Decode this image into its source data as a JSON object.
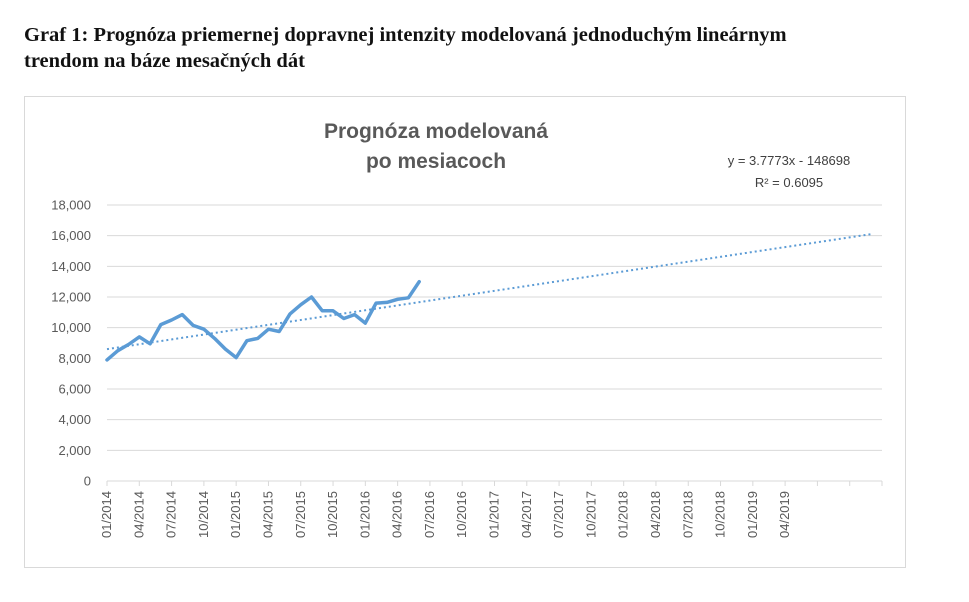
{
  "caption": {
    "line1": "Graf 1: Prognóza priemernej dopravnej intenzity modelovaná jednoduchým lineárnym",
    "line2": "trendom na báze mesačných dát"
  },
  "colors": {
    "series": "#5b9bd5",
    "gridline": "#d9d9d9",
    "text": "#595959"
  },
  "chart_data": {
    "type": "line",
    "title_lines": [
      "Prognóza modelovaná",
      "po mesiacoch"
    ],
    "trendline": {
      "equation": "y = 3.7773x - 148698",
      "r_squared": "R² = 0.6095",
      "style": "dotted",
      "start": "2014-01",
      "end": "2019-12",
      "from_value": 8600,
      "to_value": 16100
    },
    "y_ticks": [
      "0",
      "2,000",
      "4,000",
      "6,000",
      "8,000",
      "10,000",
      "12,000",
      "14,000",
      "16,000",
      "18,000"
    ],
    "x_ticks": [
      "01/2014",
      "04/2014",
      "07/2014",
      "10/2014",
      "01/2015",
      "04/2015",
      "07/2015",
      "10/2015",
      "01/2016",
      "04/2016",
      "07/2016",
      "10/2016",
      "01/2017",
      "04/2017",
      "07/2017",
      "10/2017",
      "01/2018",
      "04/2018",
      "07/2018",
      "10/2018",
      "01/2019",
      "04/2019"
    ],
    "ylim": [
      0,
      18000
    ],
    "grid": true,
    "series": [
      {
        "x": [
          "2014-01",
          "2014-02",
          "2014-03",
          "2014-04",
          "2014-05",
          "2014-06",
          "2014-07",
          "2014-08",
          "2014-09",
          "2014-10",
          "2014-11",
          "2014-12",
          "2015-01",
          "2015-02",
          "2015-03",
          "2015-04",
          "2015-05",
          "2015-06",
          "2015-07",
          "2015-08",
          "2015-09",
          "2015-10",
          "2015-11",
          "2015-12",
          "2016-01",
          "2016-02",
          "2016-03",
          "2016-04",
          "2016-05",
          "2016-06"
        ],
        "values": [
          7900,
          8500,
          8900,
          9400,
          8950,
          10200,
          10500,
          10850,
          10150,
          9900,
          9300,
          8600,
          8050,
          9150,
          9300,
          9900,
          9750,
          10900,
          11500,
          12000,
          11100,
          11100,
          10600,
          10850,
          10300,
          11600,
          11650,
          11850,
          11950,
          13000
        ]
      }
    ]
  }
}
